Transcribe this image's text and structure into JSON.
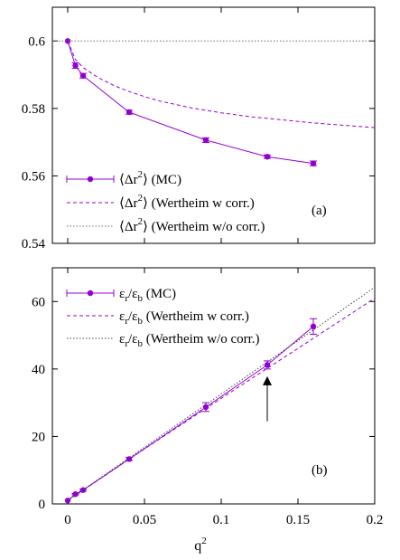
{
  "chart_data": [
    {
      "type": "line",
      "panel_label": "(a)",
      "xlim": [
        -0.01,
        0.2
      ],
      "ylim": [
        0.54,
        0.61
      ],
      "x_ticks": [
        "0",
        "0.05",
        "0.1",
        "0.15",
        "0.2"
      ],
      "y_ticks": [
        "0.54",
        "0.56",
        "0.58",
        "0.6"
      ],
      "legend_placement": "bottom-left",
      "series": [
        {
          "name_main": "⟨Δr",
          "name_sup": "2",
          "name_rest": "⟩ (MC)",
          "color": "#9400d3",
          "style": "line-points-errorbars",
          "x": [
            0,
            0.005,
            0.01,
            0.04,
            0.09,
            0.13,
            0.16
          ],
          "y": [
            0.6,
            0.5927,
            0.5897,
            0.5789,
            0.5706,
            0.5657,
            0.5637
          ],
          "err": [
            0,
            0.0008,
            0.0007,
            0.0006,
            0.0007,
            0.0005,
            0.0007
          ]
        },
        {
          "name_main": "⟨Δr",
          "name_sup": "2",
          "name_rest": "⟩ (Wertheim w corr.)",
          "color": "#9400d3",
          "style": "dashed",
          "x": [
            0,
            0.005,
            0.01,
            0.02,
            0.03,
            0.04,
            0.05,
            0.06,
            0.08,
            0.1,
            0.12,
            0.14,
            0.16,
            0.18,
            0.2
          ],
          "y": [
            0.6,
            0.5945,
            0.5921,
            0.5891,
            0.5868,
            0.585,
            0.5835,
            0.5822,
            0.5802,
            0.5787,
            0.5775,
            0.5766,
            0.5757,
            0.575,
            0.5743
          ]
        },
        {
          "name_main": "⟨Δr",
          "name_sup": "2",
          "name_rest": "⟩ (Wertheim w/o corr.)",
          "color": "#6b6b6b",
          "style": "dotted",
          "x": [
            -0.01,
            0.2
          ],
          "y": [
            0.6,
            0.6
          ]
        }
      ]
    },
    {
      "type": "line",
      "panel_label": "(b)",
      "xlabel_main": "q",
      "xlabel_sup": "2",
      "xlim": [
        -0.01,
        0.2
      ],
      "ylim": [
        0,
        70
      ],
      "x_ticks": [
        "0",
        "0.05",
        "0.1",
        "0.15",
        "0.2"
      ],
      "y_ticks": [
        "0",
        "20",
        "40",
        "60"
      ],
      "legend_placement": "top-left",
      "series": [
        {
          "name_main": "ε",
          "name_sub": "r",
          "name_mid": "/ε",
          "name_sub2": "b",
          "name_rest": " (MC)",
          "color": "#9400d3",
          "style": "line-points-errorbars",
          "x": [
            0,
            0.005,
            0.01,
            0.04,
            0.09,
            0.13,
            0.16
          ],
          "y": [
            1,
            2.9,
            4.1,
            13.3,
            28.7,
            41.2,
            52.6
          ],
          "err": [
            0,
            0.2,
            0.3,
            0.5,
            1.3,
            1.2,
            2.3
          ]
        },
        {
          "name_main": "ε",
          "name_sub": "r",
          "name_mid": "/ε",
          "name_sub2": "b",
          "name_rest": " (Wertheim w corr.)",
          "color": "#9400d3",
          "style": "dashed",
          "x": [
            0,
            0.05,
            0.1,
            0.15,
            0.2
          ],
          "y": [
            1,
            16.3,
            31.3,
            46.1,
            61
          ]
        },
        {
          "name_main": "ε",
          "name_sub": "r",
          "name_mid": "/ε",
          "name_sub2": "b",
          "name_rest": " (Wertheim w/o corr.)",
          "color": "#444444",
          "style": "dotted",
          "x": [
            0,
            0.05,
            0.1,
            0.15,
            0.2
          ],
          "y": [
            1,
            16.8,
            32.6,
            48.4,
            64.2
          ]
        }
      ],
      "annotation": {
        "type": "arrow",
        "x": 0.13,
        "y_from": 24.5,
        "y_to": 36.5
      }
    }
  ]
}
